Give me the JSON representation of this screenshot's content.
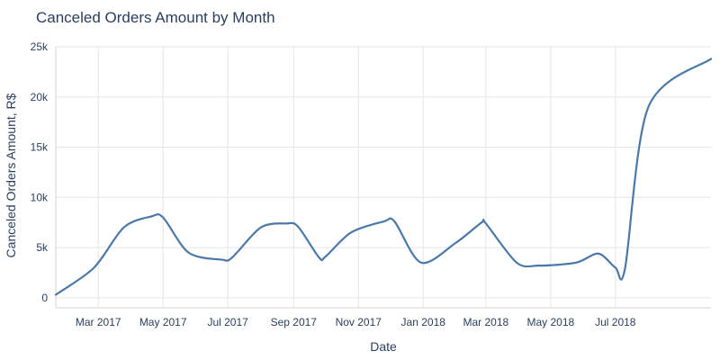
{
  "chart_data": {
    "type": "line",
    "title": "Canceled Orders Amount by Month",
    "xlabel": "Date",
    "ylabel": "Canceled Orders Amount, R$",
    "ylim": [
      -1000,
      25000
    ],
    "xlim": [
      "2017-01-20",
      "2018-09-29"
    ],
    "y_ticks": [
      {
        "value": 0,
        "label": "0"
      },
      {
        "value": 5000,
        "label": "5k"
      },
      {
        "value": 10000,
        "label": "10k"
      },
      {
        "value": 15000,
        "label": "15k"
      },
      {
        "value": 20000,
        "label": "20k"
      },
      {
        "value": 25000,
        "label": "25k"
      }
    ],
    "x_ticks": [
      {
        "value": "2017-03-01",
        "label": "Mar 2017"
      },
      {
        "value": "2017-05-01",
        "label": "May 2017"
      },
      {
        "value": "2017-07-01",
        "label": "Jul 2017"
      },
      {
        "value": "2017-09-01",
        "label": "Sep 2017"
      },
      {
        "value": "2017-11-01",
        "label": "Nov 2017"
      },
      {
        "value": "2018-01-01",
        "label": "Jan 2018"
      },
      {
        "value": "2018-03-01",
        "label": "Mar 2018"
      },
      {
        "value": "2018-05-01",
        "label": "May 2018"
      },
      {
        "value": "2018-07-01",
        "label": "Jul 2018"
      }
    ],
    "grid": true,
    "line_color": "#4c78a8",
    "series": [
      {
        "x": [
          "2017-01-20",
          "2017-02-25",
          "2017-03-25",
          "2017-04-20",
          "2017-05-01",
          "2017-05-25",
          "2017-06-25",
          "2017-07-05",
          "2017-08-01",
          "2017-08-25",
          "2017-09-05",
          "2017-09-25",
          "2017-10-01",
          "2017-10-25",
          "2017-11-25",
          "2017-12-05",
          "2017-12-30",
          "2018-02-01",
          "2018-02-25",
          "2018-03-01",
          "2018-03-30",
          "2018-04-20",
          "2018-05-25",
          "2018-06-15",
          "2018-07-01",
          "2018-07-10",
          "2018-08-01",
          "2018-09-29"
        ],
        "y": [
          300,
          3000,
          7000,
          8100,
          8000,
          4500,
          3800,
          4000,
          7000,
          7400,
          7100,
          4000,
          4100,
          6500,
          7600,
          7600,
          3500,
          5500,
          7500,
          7400,
          3500,
          3200,
          3500,
          4400,
          3000,
          2900,
          19000,
          23800
        ]
      }
    ]
  }
}
